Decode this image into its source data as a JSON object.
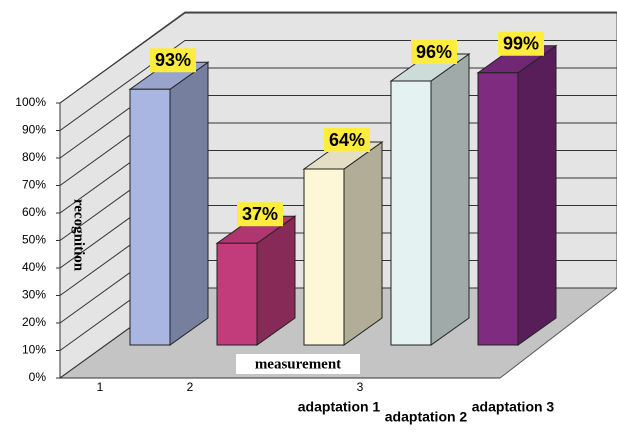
{
  "chart_data": {
    "type": "bar3d",
    "y_label": "recognition",
    "x_label": "measurement",
    "x_tick_labels": [
      "1",
      "2",
      "3"
    ],
    "categories": [
      null,
      null,
      "adaptation 1",
      "adaptation 2",
      "adaptation 3"
    ],
    "values": [
      93,
      37,
      64,
      96,
      99
    ],
    "value_labels": [
      "93%",
      "37%",
      "64%",
      "96%",
      "99%"
    ],
    "colors": [
      "#a9b6e2",
      "#c23c7c",
      "#fdf7d8",
      "#e4f3f1",
      "#7e2b80"
    ],
    "ylim": [
      0,
      100
    ],
    "yticks": [
      {
        "value": 0,
        "label": "0%"
      },
      {
        "value": 10,
        "label": "10%"
      },
      {
        "value": 20,
        "label": "20%"
      },
      {
        "value": 30,
        "label": "30%"
      },
      {
        "value": 40,
        "label": "40%"
      },
      {
        "value": 50,
        "label": "50%"
      },
      {
        "value": 60,
        "label": "60%"
      },
      {
        "value": 70,
        "label": "70%"
      },
      {
        "value": 80,
        "label": "80%"
      },
      {
        "value": 90,
        "label": "90%"
      },
      {
        "value": 100,
        "label": "100%"
      }
    ],
    "grid": true
  }
}
